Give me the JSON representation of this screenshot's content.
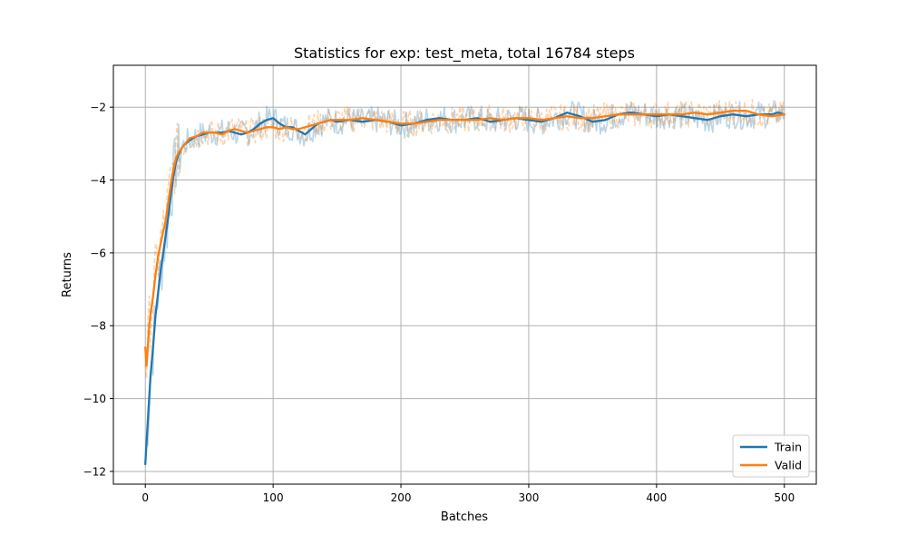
{
  "chart_data": {
    "type": "line",
    "title": "Statistics for exp: test_meta, total 16784 steps",
    "xlabel": "Batches",
    "ylabel": "Returns",
    "xlim": [
      -25,
      525
    ],
    "ylim": [
      -12.35,
      -0.85
    ],
    "xticks": [
      0,
      100,
      200,
      300,
      400,
      500
    ],
    "yticks": [
      -12,
      -10,
      -8,
      -6,
      -4,
      -2
    ],
    "x_tick_labels": [
      "0",
      "100",
      "200",
      "300",
      "400",
      "500"
    ],
    "y_tick_labels": [
      "−12",
      "−10",
      "−8",
      "−6",
      "−4",
      "−2"
    ],
    "grid": true,
    "legend_position": "lower-right",
    "series": [
      {
        "name": "Train",
        "color": "#1f77b4",
        "style": "solid",
        "x": [
          0,
          2,
          4,
          6,
          8,
          10,
          12,
          14,
          16,
          18,
          20,
          22,
          24,
          26,
          28,
          30,
          35,
          40,
          45,
          50,
          55,
          60,
          65,
          70,
          75,
          80,
          85,
          90,
          95,
          100,
          105,
          110,
          115,
          120,
          125,
          130,
          135,
          140,
          145,
          150,
          160,
          170,
          180,
          190,
          200,
          210,
          220,
          230,
          240,
          250,
          260,
          270,
          280,
          290,
          300,
          310,
          320,
          330,
          340,
          350,
          360,
          370,
          380,
          390,
          400,
          410,
          420,
          430,
          440,
          450,
          460,
          470,
          480,
          490,
          495,
          500
        ],
        "values": [
          -11.8,
          -10.6,
          -9.4,
          -8.6,
          -7.7,
          -7.1,
          -6.5,
          -6.0,
          -5.5,
          -5.0,
          -4.4,
          -3.9,
          -3.5,
          -3.3,
          -3.15,
          -3.05,
          -2.9,
          -2.8,
          -2.75,
          -2.7,
          -2.7,
          -2.7,
          -2.65,
          -2.7,
          -2.75,
          -2.7,
          -2.6,
          -2.45,
          -2.35,
          -2.3,
          -2.45,
          -2.55,
          -2.55,
          -2.65,
          -2.75,
          -2.6,
          -2.45,
          -2.4,
          -2.35,
          -2.4,
          -2.35,
          -2.4,
          -2.35,
          -2.4,
          -2.5,
          -2.45,
          -2.35,
          -2.3,
          -2.35,
          -2.35,
          -2.3,
          -2.4,
          -2.35,
          -2.3,
          -2.35,
          -2.4,
          -2.3,
          -2.15,
          -2.25,
          -2.4,
          -2.35,
          -2.2,
          -2.15,
          -2.2,
          -2.25,
          -2.2,
          -2.25,
          -2.3,
          -2.35,
          -2.25,
          -2.2,
          -2.25,
          -2.2,
          -2.2,
          -2.15,
          -2.2
        ]
      },
      {
        "name": "Valid",
        "color": "#ff7f0e",
        "style": "solid",
        "x": [
          0,
          1,
          2,
          3,
          4,
          6,
          8,
          10,
          12,
          14,
          16,
          18,
          20,
          22,
          24,
          26,
          28,
          30,
          35,
          40,
          45,
          50,
          55,
          60,
          65,
          70,
          75,
          80,
          85,
          90,
          95,
          100,
          105,
          110,
          115,
          120,
          125,
          130,
          135,
          140,
          145,
          150,
          160,
          170,
          180,
          190,
          200,
          210,
          220,
          230,
          240,
          250,
          260,
          270,
          280,
          290,
          300,
          310,
          320,
          330,
          340,
          350,
          360,
          370,
          380,
          390,
          400,
          410,
          420,
          430,
          440,
          450,
          460,
          470,
          480,
          490,
          500
        ],
        "values": [
          -8.6,
          -9.1,
          -8.6,
          -8.0,
          -7.7,
          -7.2,
          -6.6,
          -6.1,
          -5.75,
          -5.4,
          -5.1,
          -4.6,
          -4.1,
          -3.7,
          -3.4,
          -3.25,
          -3.15,
          -3.05,
          -2.85,
          -2.8,
          -2.7,
          -2.7,
          -2.7,
          -2.75,
          -2.65,
          -2.6,
          -2.65,
          -2.7,
          -2.65,
          -2.6,
          -2.55,
          -2.55,
          -2.6,
          -2.55,
          -2.6,
          -2.6,
          -2.55,
          -2.5,
          -2.45,
          -2.4,
          -2.35,
          -2.35,
          -2.35,
          -2.3,
          -2.35,
          -2.4,
          -2.45,
          -2.45,
          -2.4,
          -2.35,
          -2.35,
          -2.35,
          -2.35,
          -2.3,
          -2.35,
          -2.3,
          -2.3,
          -2.35,
          -2.3,
          -2.25,
          -2.3,
          -2.3,
          -2.25,
          -2.2,
          -2.2,
          -2.2,
          -2.2,
          -2.2,
          -2.2,
          -2.15,
          -2.2,
          -2.15,
          -2.1,
          -2.1,
          -2.2,
          -2.25,
          -2.2
        ]
      }
    ]
  }
}
